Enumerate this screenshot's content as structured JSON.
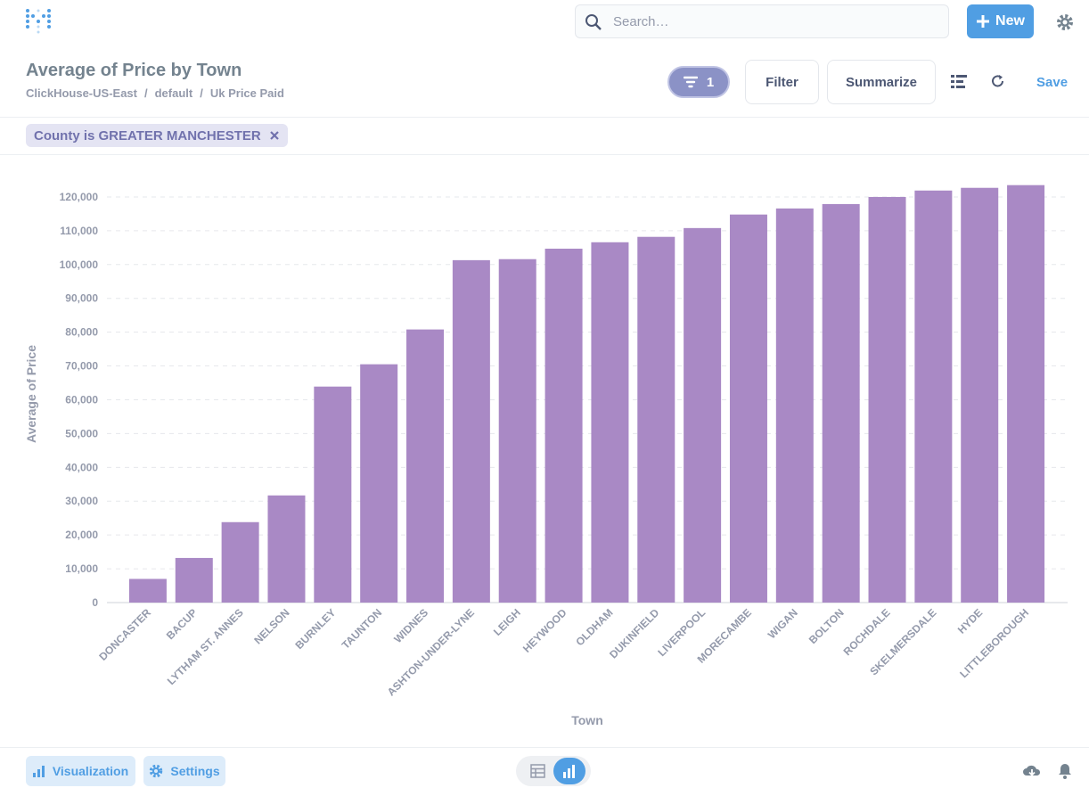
{
  "header": {
    "search_placeholder": "Search…",
    "new_button": "New"
  },
  "question": {
    "title": "Average of Price by Town",
    "breadcrumb": [
      "ClickHouse-US-East",
      "default",
      "Uk Price Paid"
    ],
    "breadcrumb_separator": "/",
    "filter_count": 1,
    "filter_button": "Filter",
    "summarize_button": "Summarize",
    "save_button": "Save"
  },
  "filters": [
    {
      "label": "County is GREATER MANCHESTER"
    }
  ],
  "footer": {
    "visualization": "Visualization",
    "settings": "Settings"
  },
  "chart_data": {
    "type": "bar",
    "x_label": "Town",
    "y_label": "Average of Price",
    "categories": [
      "DONCASTER",
      "BACUP",
      "LYTHAM ST. ANNES",
      "NELSON",
      "BURNLEY",
      "TAUNTON",
      "WIDNES",
      "ASHTON-UNDER-LYNE",
      "LEIGH",
      "HEYWOOD",
      "OLDHAM",
      "DUKINFIELD",
      "LIVERPOOL",
      "MORECAMBE",
      "WIGAN",
      "BOLTON",
      "ROCHDALE",
      "SKELMERSDALE",
      "HYDE",
      "LITTLEBOROUGH"
    ],
    "values": [
      7000,
      13200,
      23800,
      31700,
      63900,
      70500,
      80800,
      101300,
      101600,
      104700,
      106600,
      108200,
      110800,
      114800,
      116600,
      117900,
      120000,
      121900,
      122700,
      123500
    ],
    "color": "#a989c5",
    "grid": true,
    "ylim": [
      0,
      125000
    ],
    "yticks": [
      0,
      {
        "value": 10000,
        "label": "10,000"
      },
      {
        "value": 20000,
        "label": "20,000"
      },
      {
        "value": 30000,
        "label": "30,000"
      },
      {
        "value": 40000,
        "label": "40,000"
      },
      {
        "value": 50000,
        "label": "50,000"
      },
      {
        "value": 60000,
        "label": "60,000"
      },
      {
        "value": 70000,
        "label": "70,000"
      },
      {
        "value": 80000,
        "label": "80,000"
      },
      {
        "value": 90000,
        "label": "90,000"
      },
      {
        "value": 100000,
        "label": "100,000"
      },
      {
        "value": 110000,
        "label": "110,000"
      },
      {
        "value": 120000,
        "label": "120,000"
      }
    ]
  }
}
